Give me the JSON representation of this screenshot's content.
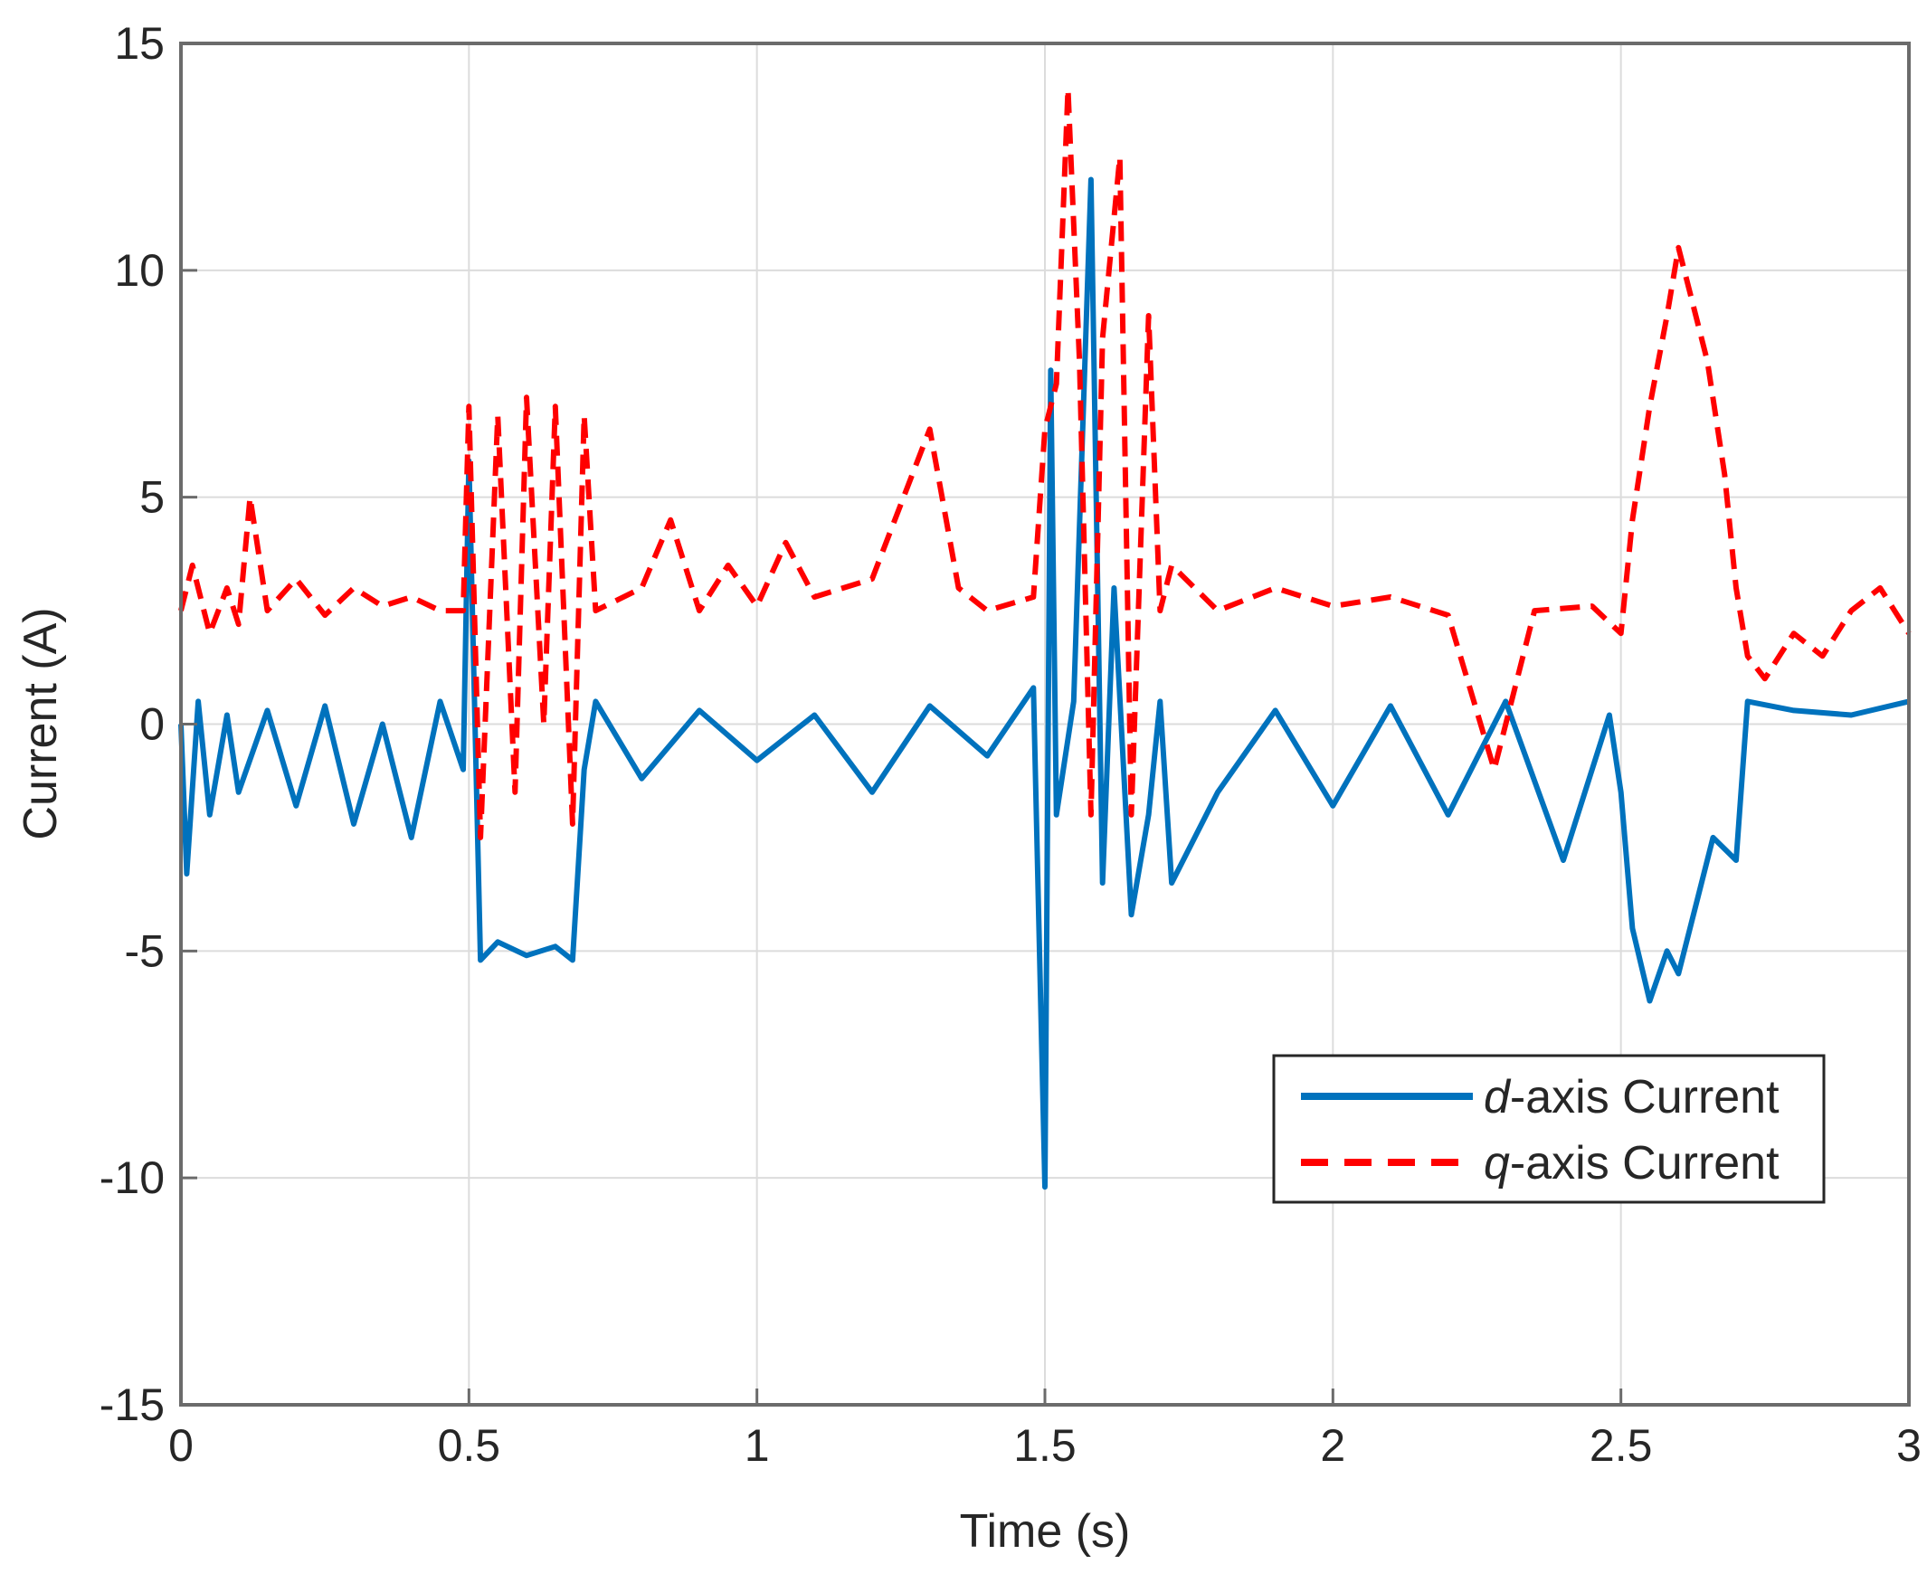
{
  "chart_data": {
    "type": "line",
    "xlabel": "Time (s)",
    "ylabel": "Current (A)",
    "xlim": [
      0,
      3
    ],
    "ylim": [
      -15,
      15
    ],
    "xticks": [
      0,
      0.5,
      1,
      1.5,
      2,
      2.5,
      3
    ],
    "xtick_labels": [
      "0",
      "0.5",
      "1",
      "1.5",
      "2",
      "2.5",
      "3"
    ],
    "yticks": [
      -15,
      -10,
      -5,
      0,
      5,
      10,
      15
    ],
    "ytick_labels": [
      "-15",
      "-10",
      "-5",
      "0",
      "5",
      "10",
      "15"
    ],
    "grid": true,
    "legend_position": "lower-right",
    "series": [
      {
        "name_prefix": "d",
        "name_suffix": "-axis Current",
        "color": "#0072BD",
        "line_style": "solid",
        "x": [
          0.0,
          0.01,
          0.03,
          0.05,
          0.08,
          0.1,
          0.15,
          0.2,
          0.25,
          0.3,
          0.35,
          0.4,
          0.45,
          0.49,
          0.5,
          0.52,
          0.55,
          0.6,
          0.65,
          0.68,
          0.7,
          0.72,
          0.8,
          0.9,
          1.0,
          1.1,
          1.2,
          1.3,
          1.4,
          1.48,
          1.5,
          1.51,
          1.52,
          1.55,
          1.58,
          1.6,
          1.62,
          1.65,
          1.68,
          1.7,
          1.72,
          1.8,
          1.9,
          2.0,
          2.1,
          2.2,
          2.3,
          2.4,
          2.48,
          2.5,
          2.52,
          2.55,
          2.58,
          2.6,
          2.63,
          2.66,
          2.7,
          2.72,
          2.8,
          2.9,
          3.0
        ],
        "y": [
          0.0,
          -3.3,
          0.5,
          -2.0,
          0.2,
          -1.5,
          0.3,
          -1.8,
          0.4,
          -2.2,
          0.0,
          -2.5,
          0.5,
          -1.0,
          5.8,
          -5.2,
          -4.8,
          -5.1,
          -4.9,
          -5.2,
          -1.0,
          0.5,
          -1.2,
          0.3,
          -0.8,
          0.2,
          -1.5,
          0.4,
          -0.7,
          0.8,
          -10.2,
          7.8,
          -2.0,
          0.5,
          12.0,
          -3.5,
          3.0,
          -4.2,
          -2.0,
          0.5,
          -3.5,
          -1.5,
          0.3,
          -1.8,
          0.4,
          -2.0,
          0.5,
          -3.0,
          0.2,
          -1.5,
          -4.5,
          -6.1,
          -5.0,
          -5.5,
          -4.0,
          -2.5,
          -3.0,
          0.5,
          0.3,
          0.2,
          0.5
        ]
      },
      {
        "name_prefix": "q",
        "name_suffix": "-axis Current",
        "color": "#FF0000",
        "line_style": "dashed",
        "x": [
          0.0,
          0.02,
          0.05,
          0.08,
          0.1,
          0.12,
          0.15,
          0.2,
          0.25,
          0.3,
          0.35,
          0.4,
          0.45,
          0.49,
          0.5,
          0.52,
          0.55,
          0.58,
          0.6,
          0.63,
          0.65,
          0.68,
          0.7,
          0.72,
          0.8,
          0.85,
          0.9,
          0.95,
          1.0,
          1.05,
          1.1,
          1.2,
          1.3,
          1.35,
          1.4,
          1.48,
          1.5,
          1.52,
          1.54,
          1.56,
          1.58,
          1.6,
          1.63,
          1.65,
          1.68,
          1.7,
          1.72,
          1.8,
          1.9,
          2.0,
          2.1,
          2.2,
          2.28,
          2.35,
          2.45,
          2.5,
          2.52,
          2.55,
          2.58,
          2.6,
          2.62,
          2.65,
          2.68,
          2.7,
          2.72,
          2.75,
          2.8,
          2.85,
          2.9,
          2.95,
          3.0
        ],
        "y": [
          2.5,
          3.5,
          2.0,
          3.0,
          2.2,
          5.0,
          2.5,
          3.2,
          2.4,
          3.0,
          2.6,
          2.8,
          2.5,
          2.5,
          7.0,
          -2.5,
          6.8,
          -1.5,
          7.2,
          0.0,
          7.0,
          -2.2,
          6.8,
          2.5,
          3.0,
          4.5,
          2.5,
          3.5,
          2.6,
          4.0,
          2.8,
          3.2,
          6.5,
          3.0,
          2.5,
          2.8,
          6.5,
          7.5,
          14.0,
          8.0,
          -2.0,
          8.5,
          12.5,
          -2.0,
          9.0,
          2.5,
          3.5,
          2.5,
          3.0,
          2.6,
          2.8,
          2.4,
          -1.0,
          2.5,
          2.6,
          2.0,
          4.5,
          7.0,
          9.0,
          10.5,
          9.5,
          8.0,
          5.5,
          3.0,
          1.5,
          1.0,
          2.0,
          1.5,
          2.5,
          3.0,
          2.0
        ]
      }
    ]
  }
}
